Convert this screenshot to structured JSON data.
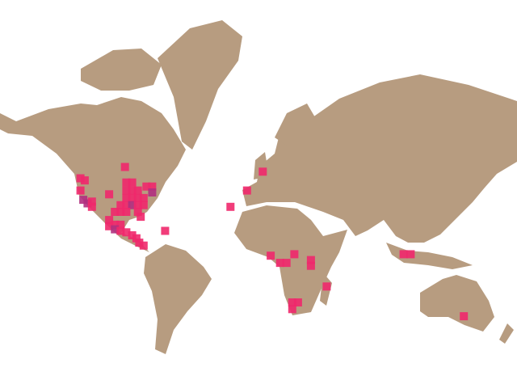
{
  "map": {
    "projection": "mercator",
    "colors": {
      "background": "#ffffff",
      "land": "#b79c80",
      "highlight": "#f0286c",
      "highlight_overlap": "#b0307f"
    },
    "highlighted_cells": [
      {
        "lon": -124,
        "lat": 48
      },
      {
        "lon": -121,
        "lat": 47
      },
      {
        "lon": -124,
        "lat": 42
      },
      {
        "lon": -122,
        "lat": 37,
        "overlap": true
      },
      {
        "lon": -119,
        "lat": 35,
        "overlap": true
      },
      {
        "lon": -116,
        "lat": 36
      },
      {
        "lon": -116,
        "lat": 33
      },
      {
        "lon": -93,
        "lat": 53
      },
      {
        "lon": -104,
        "lat": 40
      },
      {
        "lon": -92,
        "lat": 46
      },
      {
        "lon": -88,
        "lat": 46
      },
      {
        "lon": -92,
        "lat": 42
      },
      {
        "lon": -88,
        "lat": 42
      },
      {
        "lon": -84,
        "lat": 42
      },
      {
        "lon": -78,
        "lat": 44
      },
      {
        "lon": -74,
        "lat": 44
      },
      {
        "lon": -74,
        "lat": 41,
        "overlap": true
      },
      {
        "lon": -80,
        "lat": 38
      },
      {
        "lon": -92,
        "lat": 38
      },
      {
        "lon": -88,
        "lat": 38
      },
      {
        "lon": -84,
        "lat": 38
      },
      {
        "lon": -96,
        "lat": 34
      },
      {
        "lon": -92,
        "lat": 34
      },
      {
        "lon": -88,
        "lat": 34,
        "overlap": true
      },
      {
        "lon": -84,
        "lat": 34
      },
      {
        "lon": -80,
        "lat": 34
      },
      {
        "lon": -100,
        "lat": 30
      },
      {
        "lon": -96,
        "lat": 30
      },
      {
        "lon": -92,
        "lat": 30
      },
      {
        "lon": -84,
        "lat": 30
      },
      {
        "lon": -82,
        "lat": 27
      },
      {
        "lon": -104,
        "lat": 25
      },
      {
        "lon": -100,
        "lat": 22
      },
      {
        "lon": -96,
        "lat": 22
      },
      {
        "lon": -104,
        "lat": 21
      },
      {
        "lon": -100,
        "lat": 19,
        "overlap": true
      },
      {
        "lon": -96,
        "lat": 18
      },
      {
        "lon": -92,
        "lat": 17
      },
      {
        "lon": -88,
        "lat": 15
      },
      {
        "lon": -85,
        "lat": 13
      },
      {
        "lon": -83,
        "lat": 10
      },
      {
        "lon": -80,
        "lat": 8
      },
      {
        "lon": -65,
        "lat": 18
      },
      {
        "lon": -19.5,
        "lat": 33
      },
      {
        "lon": -8,
        "lat": 42
      },
      {
        "lon": 3,
        "lat": 51
      },
      {
        "lon": 8.5,
        "lat": 1
      },
      {
        "lon": 15,
        "lat": -4
      },
      {
        "lon": 19.5,
        "lat": -4
      },
      {
        "lon": 25,
        "lat": 2
      },
      {
        "lon": 36.5,
        "lat": -2
      },
      {
        "lon": 36.5,
        "lat": -6
      },
      {
        "lon": 47.5,
        "lat": -20
      },
      {
        "lon": 23.5,
        "lat": -30
      },
      {
        "lon": 27.5,
        "lat": -30
      },
      {
        "lon": 23.5,
        "lat": -34
      },
      {
        "lon": 101,
        "lat": 2
      },
      {
        "lon": 106,
        "lat": 2
      },
      {
        "lon": 143,
        "lat": -38
      }
    ]
  }
}
